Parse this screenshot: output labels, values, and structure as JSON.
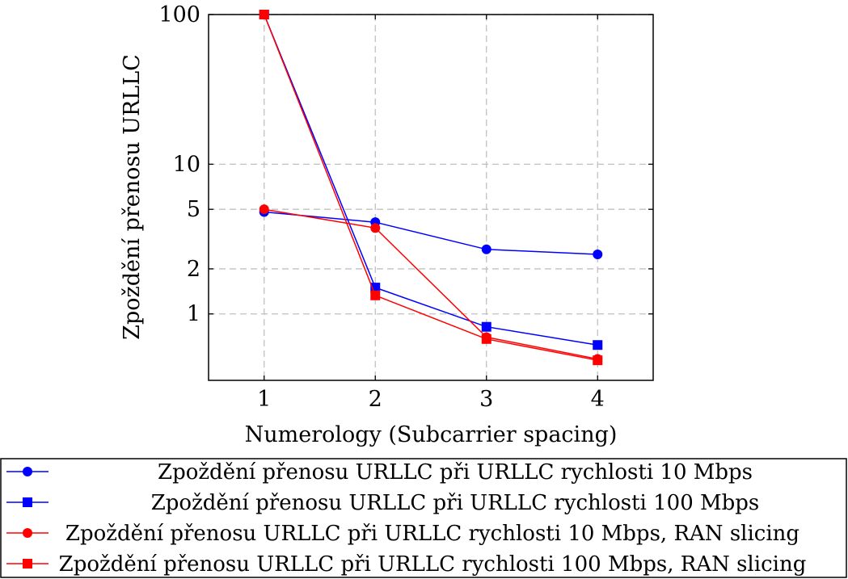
{
  "chart_data": {
    "type": "line",
    "title": "",
    "xlabel": "Numerology (Subcarrier spacing)",
    "ylabel": "Zpoždění přenosu URLLC",
    "x": [
      1,
      2,
      3,
      4
    ],
    "x_ticks": [
      "1",
      "2",
      "3",
      "4"
    ],
    "xlim": [
      0.5,
      4.5
    ],
    "y_scale": "log",
    "ylim": [
      0.36,
      100
    ],
    "y_ticks": [
      {
        "value": 1,
        "label": "1"
      },
      {
        "value": 2,
        "label": "2"
      },
      {
        "value": 5,
        "label": "5"
      },
      {
        "value": 10,
        "label": "10"
      },
      {
        "value": 100,
        "label": "100"
      }
    ],
    "grid": true,
    "legend_position": "bottom",
    "series": [
      {
        "name": "Zpoždění přenosu URLLC při URLLC rychlosti 10 Mbps",
        "color": "#0000ff",
        "marker": "circle",
        "values": [
          4.8,
          4.1,
          2.7,
          2.5
        ]
      },
      {
        "name": "Zpoždění přenosu URLLC při URLLC rychlosti 100 Mbps",
        "color": "#0000ff",
        "marker": "square",
        "values": [
          100,
          1.5,
          0.82,
          0.62
        ]
      },
      {
        "name": "Zpoždění přenosu URLLC při URLLC rychlosti 10 Mbps, RAN slicing",
        "color": "#ff0000",
        "marker": "circle",
        "values": [
          5.0,
          3.75,
          0.7,
          0.5
        ]
      },
      {
        "name": "Zpoždění přenosu URLLC při URLLC rychlosti 100 Mbps, RAN slicing",
        "color": "#ff0000",
        "marker": "square",
        "values": [
          100,
          1.33,
          0.68,
          0.49
        ]
      }
    ]
  }
}
